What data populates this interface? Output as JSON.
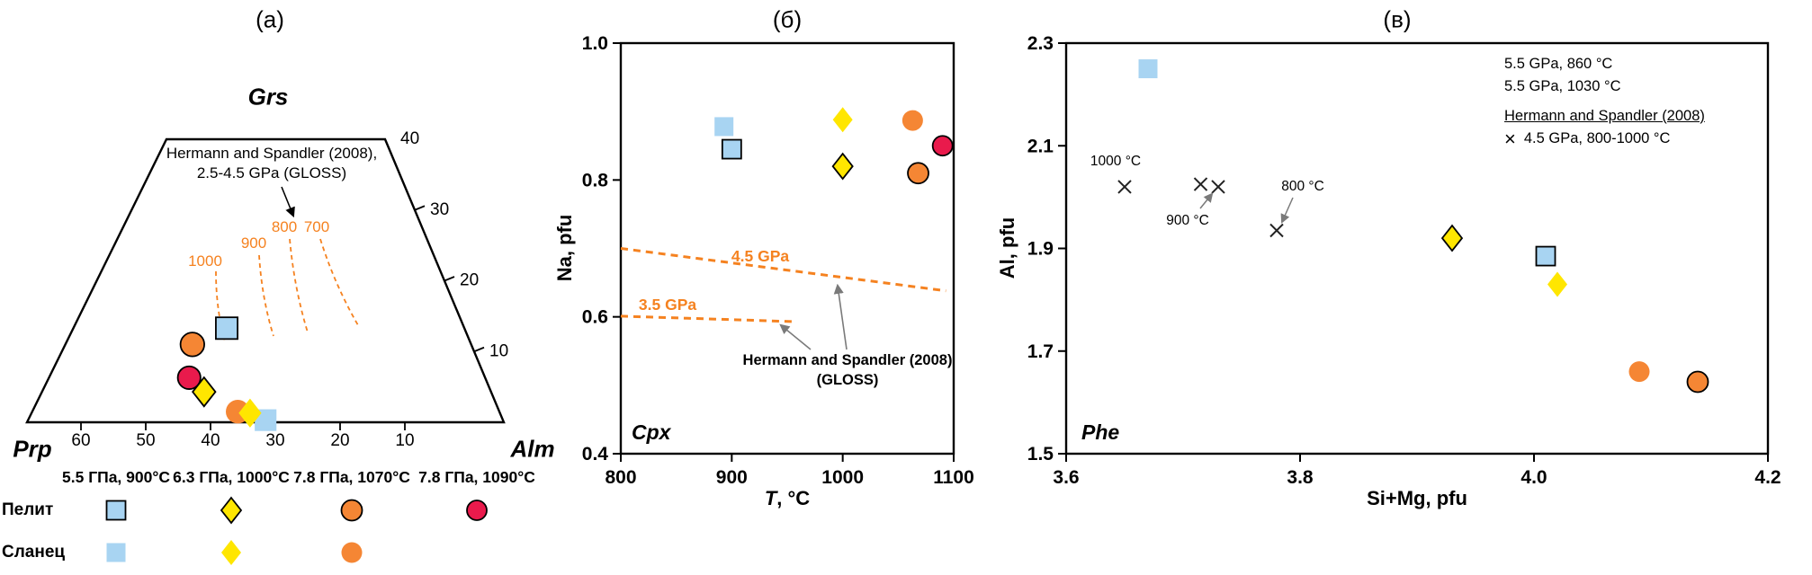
{
  "colors": {
    "blue": "#a8d4f2",
    "yellow": "#ffe600",
    "orange": "#f58634",
    "red": "#e91a4c",
    "dash_orange": "#f58220",
    "gray": "#7a7a7a"
  },
  "chart_data": [
    {
      "panel": "a",
      "title": "(а)",
      "type": "scatter",
      "subtype": "ternary-trapezoid-garnet",
      "axes": {
        "top_apex": "Grs",
        "bottom_left_apex": "Prp",
        "bottom_right_apex": "Alm",
        "right_ticks": [
          "40",
          "30",
          "20",
          "10"
        ],
        "bottom_ticks": [
          "60",
          "50",
          "40",
          "30",
          "20",
          "10"
        ]
      },
      "isotherm_labels": [
        "1000",
        "900",
        "800",
        "700"
      ],
      "annotation_lines": [
        "Hermann and Spandler (2008),",
        "2.5-4.5 GPa (GLOSS)"
      ],
      "series": [
        {
          "name": "Сланец",
          "outlined": false,
          "points": [
            {
              "marker": "square-blue",
              "condition": "5.5 ГПа, 900°C",
              "bottom_axis": 31.5,
              "grs": 0.3
            },
            {
              "marker": "circle-orange",
              "condition": "7.8 ГПа, 1070°C",
              "bottom_axis": 35.8,
              "grs": 1.5
            },
            {
              "marker": "diamond-yellow",
              "condition": "6.3 ГПа, 1000°C",
              "bottom_axis": 33.9,
              "grs": 1.3
            }
          ]
        },
        {
          "name": "Пелит",
          "outlined": true,
          "points": [
            {
              "marker": "square-blue",
              "condition": "5.5 ГПа, 900°C",
              "bottom_axis": 37.5,
              "grs": 13.3
            },
            {
              "marker": "circle-orange",
              "condition": "7.8 ГПа, 1070°C",
              "bottom_axis": 42.8,
              "grs": 11.0
            },
            {
              "marker": "circle-red",
              "condition": "7.8 ГПа, 1090°C",
              "bottom_axis": 43.3,
              "grs": 6.3
            },
            {
              "marker": "diamond-yellow",
              "condition": "6.3 ГПа, 1000°C",
              "bottom_axis": 41.0,
              "grs": 4.3
            }
          ]
        }
      ]
    },
    {
      "panel": "b",
      "title": "(б)",
      "type": "scatter",
      "xlabel": "T, °C",
      "xlabel_parts": [
        "T",
        ", °C"
      ],
      "ylabel": "Na, pfu",
      "phase_label": "Cpx",
      "xlim": [
        800,
        1100
      ],
      "ylim": [
        0.4,
        1.0
      ],
      "xticks": [
        "800",
        "900",
        "1000",
        "1100"
      ],
      "yticks": [
        "0.4",
        "0.6",
        "0.8",
        "1.0"
      ],
      "series": [
        {
          "name": "Сланец",
          "outlined": false,
          "points": [
            {
              "marker": "square-blue",
              "x": 893,
              "y": 0.878
            },
            {
              "marker": "diamond-yellow",
              "x": 1000,
              "y": 0.888
            },
            {
              "marker": "circle-orange",
              "x": 1063,
              "y": 0.887
            }
          ]
        },
        {
          "name": "Пелит",
          "outlined": true,
          "points": [
            {
              "marker": "square-blue",
              "x": 900,
              "y": 0.845
            },
            {
              "marker": "diamond-yellow",
              "x": 1000,
              "y": 0.82
            },
            {
              "marker": "circle-orange",
              "x": 1068,
              "y": 0.81
            },
            {
              "marker": "circle-red",
              "x": 1090,
              "y": 0.85
            }
          ]
        }
      ],
      "reference_lines": [
        {
          "label": "4.5 GPa",
          "points": [
            [
              800,
              0.7
            ],
            [
              1093,
              0.638
            ]
          ]
        },
        {
          "label": "3.5 GPa",
          "points": [
            [
              800,
              0.601
            ],
            [
              957,
              0.593
            ]
          ]
        }
      ],
      "annotation_lines": [
        "Hermann and Spandler (2008)",
        "(GLOSS)"
      ]
    },
    {
      "panel": "c",
      "title": "(в)",
      "type": "scatter",
      "xlabel": "Si+Mg, pfu",
      "ylabel": "Al, pfu",
      "phase_label": "Phe",
      "xlim": [
        3.6,
        4.2
      ],
      "ylim": [
        1.5,
        2.3
      ],
      "xticks": [
        "3.6",
        "3.8",
        "4.0",
        "4.2"
      ],
      "yticks": [
        "1.5",
        "1.7",
        "1.9",
        "2.1",
        "2.3"
      ],
      "series": [
        {
          "name": "Сланец",
          "outlined": false,
          "points": [
            {
              "marker": "square-blue",
              "x": 3.67,
              "y": 2.25
            },
            {
              "marker": "diamond-yellow",
              "x": 4.02,
              "y": 1.83
            },
            {
              "marker": "circle-orange",
              "x": 4.09,
              "y": 1.66
            }
          ]
        },
        {
          "name": "Пелит",
          "outlined": true,
          "points": [
            {
              "marker": "square-blue",
              "x": 4.01,
              "y": 1.885
            },
            {
              "marker": "diamond-yellow",
              "x": 3.93,
              "y": 1.92
            },
            {
              "marker": "circle-orange",
              "x": 4.14,
              "y": 1.64
            }
          ]
        },
        {
          "name": "Hermann and Spandler (2008), 4.5 GPa, 800-1000 °C",
          "marker": "cross",
          "points": [
            {
              "x": 3.65,
              "y": 2.02
            },
            {
              "x": 3.715,
              "y": 2.025
            },
            {
              "x": 3.73,
              "y": 2.02
            },
            {
              "x": 3.78,
              "y": 1.935
            }
          ]
        }
      ],
      "cross_labels": [
        {
          "text": "1000 °C"
        },
        {
          "text": "900 °C"
        },
        {
          "text": "800 °C"
        }
      ],
      "legend": {
        "conditions": [
          "5.5 GPa, 860 °C",
          "5.5 GPa, 1030 °C"
        ],
        "reference": "Hermann and Spandler (2008)",
        "reference_entry": "4.5 GPa, 800-1000 °C",
        "marker_glyph": "×"
      }
    }
  ],
  "legend": {
    "conditions": [
      "5.5 ГПа, 900°C",
      "6.3 ГПа, 1000°C",
      "7.8 ГПа, 1070°C",
      "7.8 ГПа, 1090°C"
    ],
    "rows": [
      {
        "label": "Пелит",
        "outlined": true,
        "markers": [
          "square-blue",
          "diamond-yellow",
          "circle-orange",
          "circle-red"
        ]
      },
      {
        "label": "Сланец",
        "outlined": false,
        "markers": [
          "square-blue",
          "diamond-yellow",
          "circle-orange",
          null
        ]
      }
    ]
  }
}
